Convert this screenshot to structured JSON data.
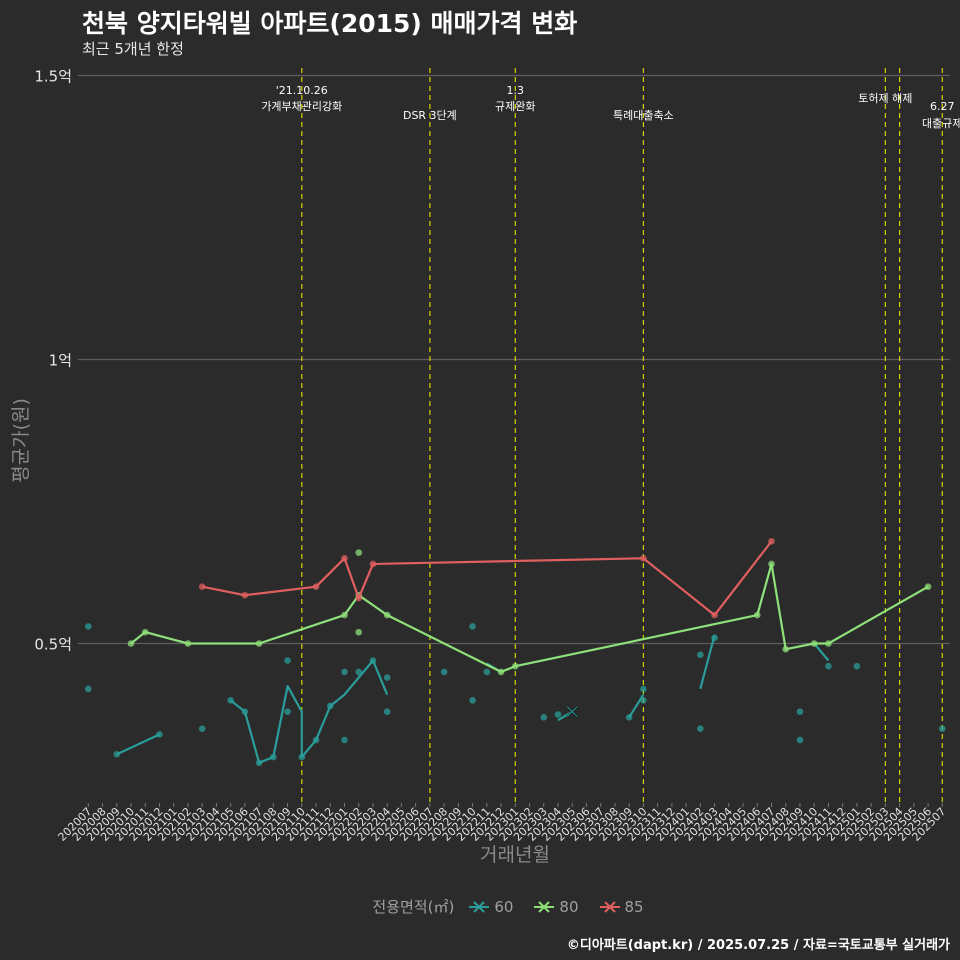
{
  "chart_data": {
    "type": "line",
    "title": "천북 양지타워빌 아파트(2015) 매매가격 변화",
    "subtitle": "최근 5개년 한정",
    "xlabel": "거래년월",
    "ylabel": "평균가(원)",
    "caption": "©디아파트(dapt.kr) / 2025.07.25 / 자료=국토교통부 실거래가",
    "ylim": [
      0.22,
      1.5
    ],
    "yticks": [
      {
        "value": 0.5,
        "label": "0.5억"
      },
      {
        "value": 1.0,
        "label": "1억"
      },
      {
        "value": 1.5,
        "label": "1.5억"
      }
    ],
    "categories": [
      "202007",
      "202008",
      "202009",
      "202010",
      "202011",
      "202012",
      "202101",
      "202102",
      "202103",
      "202104",
      "202105",
      "202106",
      "202107",
      "202108",
      "202109",
      "202110",
      "202111",
      "202112",
      "202201",
      "202202",
      "202203",
      "202204",
      "202205",
      "202206",
      "202207",
      "202208",
      "202209",
      "202210",
      "202211",
      "202212",
      "202301",
      "202302",
      "202303",
      "202304",
      "202305",
      "202306",
      "202307",
      "202308",
      "202309",
      "202310",
      "202311",
      "202312",
      "202401",
      "202402",
      "202403",
      "202404",
      "202405",
      "202406",
      "202407",
      "202408",
      "202409",
      "202410",
      "202411",
      "202412",
      "202501",
      "202502",
      "202503",
      "202504",
      "202505",
      "202506",
      "202507"
    ],
    "legend_title": "전용면적(㎡)",
    "series": [
      {
        "name": "60",
        "color": "#2a9d9a",
        "line": [
          [
            [
              2,
              0.305
            ],
            [
              5,
              0.34
            ]
          ],
          [
            [
              10,
              0.4
            ],
            [
              11,
              0.38
            ]
          ],
          [
            [
              11,
              0.38
            ],
            [
              12,
              0.29
            ],
            [
              13,
              0.3
            ],
            [
              14,
              0.425
            ],
            [
              15,
              0.38
            ],
            [
              15,
              0.3
            ],
            [
              16,
              0.33
            ],
            [
              17,
              0.39
            ],
            [
              17.5,
              0.4
            ],
            [
              18,
              0.41
            ],
            [
              20,
              0.47
            ],
            [
              21,
              0.41
            ]
          ],
          [
            [
              28,
              0.465
            ],
            [
              29,
              0.45
            ]
          ],
          [
            [
              33,
              0.365
            ],
            [
              34,
              0.38
            ]
          ],
          [
            [
              38,
              0.37
            ],
            [
              39,
              0.41
            ]
          ],
          [
            [
              43,
              0.42
            ],
            [
              44,
              0.515
            ]
          ],
          [
            [
              51,
              0.5
            ],
            [
              52,
              0.47
            ]
          ]
        ],
        "points": [
          [
            0,
            0.53
          ],
          [
            0,
            0.42
          ],
          [
            2,
            0.305
          ],
          [
            5,
            0.34
          ],
          [
            8,
            0.35
          ],
          [
            10,
            0.4
          ],
          [
            11,
            0.38
          ],
          [
            12,
            0.29
          ],
          [
            13,
            0.3
          ],
          [
            14,
            0.47
          ],
          [
            14,
            0.38
          ],
          [
            15,
            0.3
          ],
          [
            16,
            0.33
          ],
          [
            17,
            0.39
          ],
          [
            18,
            0.45
          ],
          [
            18,
            0.33
          ],
          [
            19,
            0.45
          ],
          [
            20,
            0.47
          ],
          [
            21,
            0.44
          ],
          [
            21,
            0.38
          ],
          [
            25,
            0.45
          ],
          [
            27,
            0.4
          ],
          [
            27,
            0.53
          ],
          [
            28,
            0.45
          ],
          [
            32,
            0.37
          ],
          [
            33,
            0.375
          ],
          [
            38,
            0.37
          ],
          [
            39,
            0.42
          ],
          [
            39,
            0.4
          ],
          [
            43,
            0.48
          ],
          [
            43,
            0.35
          ],
          [
            44,
            0.51
          ],
          [
            50,
            0.38
          ],
          [
            50,
            0.33
          ],
          [
            52,
            0.46
          ],
          [
            54,
            0.46
          ],
          [
            60,
            0.35
          ]
        ],
        "marker": [
          34,
          0.38
        ]
      },
      {
        "name": "80",
        "color": "#8ee07a",
        "line": [
          [
            [
              3,
              0.5
            ],
            [
              4,
              0.52
            ],
            [
              7,
              0.5
            ],
            [
              12,
              0.5
            ],
            [
              18,
              0.55
            ],
            [
              19,
              0.585
            ],
            [
              21,
              0.55
            ],
            [
              29,
              0.45
            ],
            [
              30,
              0.46
            ],
            [
              47,
              0.55
            ],
            [
              48,
              0.64
            ],
            [
              49,
              0.49
            ],
            [
              51,
              0.5
            ],
            [
              52,
              0.5
            ],
            [
              59,
              0.6
            ]
          ]
        ],
        "points": [
          [
            3,
            0.5
          ],
          [
            4,
            0.52
          ],
          [
            7,
            0.5
          ],
          [
            12,
            0.5
          ],
          [
            18,
            0.55
          ],
          [
            19,
            0.66
          ],
          [
            19,
            0.52
          ],
          [
            19,
            0.585
          ],
          [
            21,
            0.55
          ],
          [
            29,
            0.45
          ],
          [
            30,
            0.46
          ],
          [
            47,
            0.55
          ],
          [
            48,
            0.64
          ],
          [
            49,
            0.49
          ],
          [
            51,
            0.5
          ],
          [
            52,
            0.5
          ],
          [
            59,
            0.6
          ]
        ]
      },
      {
        "name": "85",
        "color": "#e05f5f",
        "line": [
          [
            [
              8,
              0.6
            ],
            [
              11,
              0.585
            ],
            [
              16,
              0.6
            ],
            [
              18,
              0.65
            ],
            [
              19,
              0.58
            ],
            [
              20,
              0.64
            ],
            [
              39,
              0.65
            ],
            [
              44,
              0.55
            ],
            [
              48,
              0.68
            ]
          ]
        ],
        "points": [
          [
            8,
            0.6
          ],
          [
            11,
            0.585
          ],
          [
            16,
            0.6
          ],
          [
            18,
            0.65
          ],
          [
            19,
            0.58
          ],
          [
            20,
            0.64
          ],
          [
            39,
            0.65
          ],
          [
            44,
            0.55
          ],
          [
            48,
            0.68
          ]
        ]
      }
    ],
    "annotations": [
      {
        "x": 15,
        "lines": [
          "'21.10.26",
          "가계부채관리강화"
        ]
      },
      {
        "x": 24,
        "lines": [
          "DSR 3단계"
        ]
      },
      {
        "x": 30,
        "lines": [
          "1.3",
          "규제완화"
        ]
      },
      {
        "x": 39,
        "lines": [
          "특례대출축소"
        ]
      },
      {
        "x": 56,
        "lines": [
          "토허제 해제"
        ]
      },
      {
        "x": 57,
        "lines": []
      },
      {
        "x": 60,
        "lines": [
          "6.27",
          "대출규제"
        ]
      }
    ]
  }
}
